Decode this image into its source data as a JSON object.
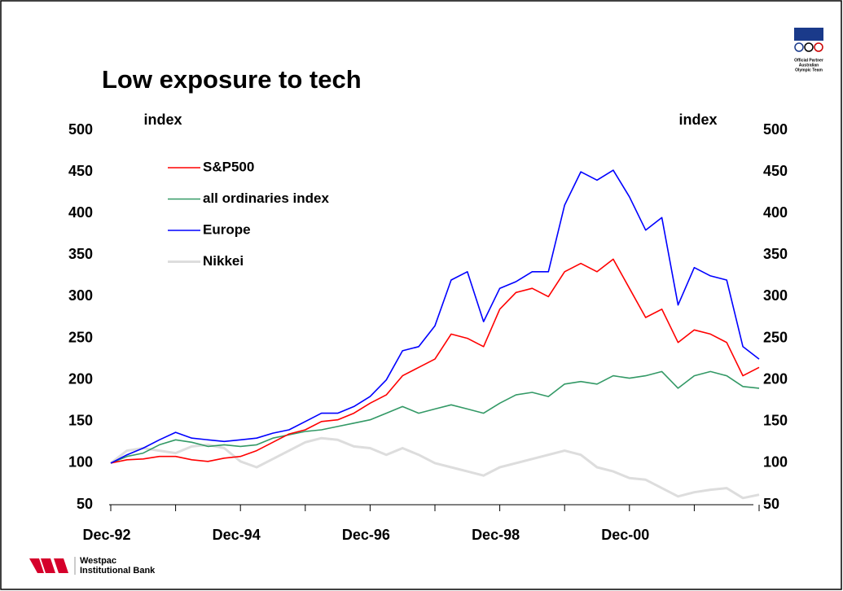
{
  "chart_data": {
    "type": "line",
    "title": "Low exposure to tech",
    "y_label": "index",
    "y2_label": "index",
    "categories": [
      "Dec-92",
      null,
      null,
      null,
      null,
      null,
      null,
      null,
      "Dec-94",
      null,
      null,
      null,
      null,
      null,
      null,
      null,
      "Dec-96",
      null,
      null,
      null,
      null,
      null,
      null,
      null,
      "Dec-98",
      null,
      null,
      null,
      null,
      null,
      null,
      null,
      "Dec-00",
      null,
      null,
      null,
      null,
      null,
      null,
      null,
      null
    ],
    "ylim": [
      50,
      500
    ],
    "yticks": [
      50,
      100,
      150,
      200,
      250,
      300,
      350,
      400,
      450,
      500
    ],
    "y2lim": [
      50,
      500
    ],
    "y2ticks": [
      50,
      100,
      150,
      200,
      250,
      300,
      350,
      400,
      450,
      500
    ],
    "legend": "upper left",
    "grid": false,
    "series": [
      {
        "name": "S&P500",
        "color": "#ff0000",
        "values": [
          100,
          104,
          105,
          108,
          108,
          104,
          102,
          106,
          108,
          115,
          125,
          135,
          140,
          150,
          152,
          160,
          172,
          182,
          205,
          215,
          225,
          255,
          250,
          240,
          285,
          305,
          310,
          300,
          330,
          340,
          330,
          345,
          310,
          275,
          285,
          245,
          260,
          255,
          245,
          205,
          215
        ]
      },
      {
        "name": "all ordinaries index",
        "color": "#339966",
        "values": [
          100,
          108,
          112,
          122,
          128,
          125,
          120,
          122,
          120,
          122,
          130,
          134,
          138,
          140,
          144,
          148,
          152,
          160,
          168,
          160,
          165,
          170,
          165,
          160,
          172,
          182,
          185,
          180,
          195,
          198,
          195,
          205,
          202,
          205,
          210,
          190,
          205,
          210,
          205,
          192,
          190
        ]
      },
      {
        "name": "Europe",
        "color": "#0000ff",
        "values": [
          100,
          110,
          118,
          128,
          137,
          130,
          128,
          126,
          128,
          130,
          136,
          140,
          150,
          160,
          160,
          168,
          180,
          200,
          235,
          240,
          265,
          320,
          330,
          270,
          310,
          318,
          330,
          330,
          410,
          450,
          440,
          452,
          420,
          380,
          395,
          290,
          335,
          325,
          320,
          240,
          225
        ]
      },
      {
        "name": "Nikkei",
        "color": "#dddddd",
        "values": [
          100,
          115,
          118,
          115,
          112,
          120,
          122,
          118,
          102,
          95,
          105,
          115,
          125,
          130,
          128,
          120,
          118,
          110,
          118,
          110,
          100,
          95,
          90,
          85,
          95,
          100,
          105,
          110,
          115,
          110,
          95,
          90,
          82,
          80,
          70,
          60,
          65,
          68,
          70,
          58,
          62
        ]
      }
    ]
  },
  "logos": {
    "bank": [
      "Westpac",
      "Institutional Bank"
    ],
    "partner": [
      "Official Partner",
      "Australian",
      "Olympic Team"
    ]
  }
}
